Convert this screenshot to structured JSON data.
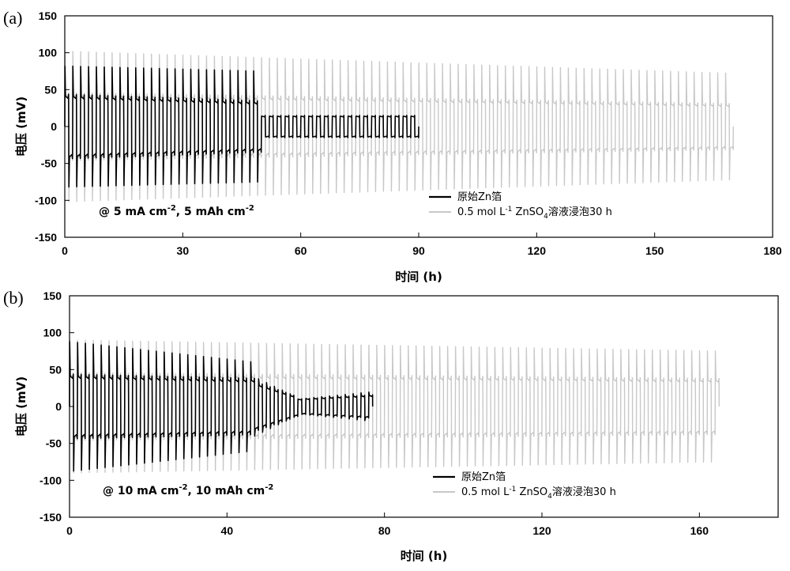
{
  "chart_data": [
    {
      "type": "line",
      "panel_label": "(a)",
      "xlabel": "时间 (h)",
      "ylabel": "电压 (mV)",
      "xlim": [
        0,
        180
      ],
      "ylim": [
        -150,
        150
      ],
      "x_ticks": [
        0,
        30,
        60,
        90,
        120,
        150,
        180
      ],
      "y_ticks": [
        150,
        100,
        50,
        0,
        -50,
        -100,
        -150
      ],
      "annotation": {
        "prefix": "@ 5 mA cm",
        "sup1": "-2",
        "mid": ", 5 mAh cm",
        "sup2": "-2"
      },
      "legend_position": "bottom-right",
      "series": [
        {
          "name": "原始Zn箔",
          "color": "#000000",
          "x_end": 90,
          "half_cycle_h": 1,
          "stages": [
            {
              "to": 50,
              "plateau": [
                38,
                30
              ],
              "peak_start": [
                82,
                75
              ],
              "peak_end": [
                50,
                50
              ]
            },
            {
              "to": 90,
              "plateau": [
                13,
                13
              ],
              "peak_start": [
                14,
                14
              ],
              "peak_end": [
                14,
                14
              ]
            }
          ]
        },
        {
          "name_parts": {
            "a": "0.5 mol L",
            "sup": "-1",
            "b": " ZnSO",
            "sub": "4",
            "c": "溶液浸泡30 h"
          },
          "color": "#c8c8c8",
          "x_end": 170,
          "half_cycle_h": 1,
          "stages": [
            {
              "to": 170,
              "plateau": [
                40,
                27
              ],
              "peak_start": [
                102,
                72
              ],
              "peak_end": [
                70,
                62
              ]
            }
          ]
        }
      ]
    },
    {
      "type": "line",
      "panel_label": "(b)",
      "xlabel": "时间 (h)",
      "ylabel": "电压 (mV)",
      "xlim": [
        0,
        180
      ],
      "ylim": [
        -150,
        150
      ],
      "x_ticks": [
        0,
        40,
        80,
        120,
        160
      ],
      "y_ticks": [
        150,
        100,
        50,
        0,
        -50,
        -100,
        -150
      ],
      "annotation": {
        "prefix": "@ 10 mA cm",
        "sup1": "-2",
        "mid": ", 10 mAh cm",
        "sup2": "-2"
      },
      "legend_position": "bottom-right",
      "series": [
        {
          "name": "原始Zn箔",
          "color": "#000000",
          "x_end": 77,
          "half_cycle_h": 1,
          "stages": [
            {
              "to": 47,
              "plateau": [
                38,
                33
              ],
              "peak_start": [
                88,
                60
              ],
              "peak_end": [
                58,
                55
              ]
            },
            {
              "to": 58,
              "plateau": [
                28,
                10
              ],
              "peak_start": [
                40,
                12
              ],
              "peak_end": [
                40,
                12
              ]
            },
            {
              "to": 77,
              "plateau": [
                9,
                14
              ],
              "peak_start": [
                10,
                20
              ],
              "peak_end": [
                10,
                20
              ]
            }
          ]
        },
        {
          "name_parts": {
            "a": "0.5 mol L",
            "sup": "-1",
            "b": " ZnSO",
            "sub": "4",
            "c": "溶液浸泡30 h"
          },
          "color": "#c8c8c8",
          "x_end": 165,
          "half_cycle_h": 1,
          "stages": [
            {
              "to": 165,
              "plateau": [
                40,
                33
              ],
              "peak_start": [
                90,
                75
              ],
              "peak_end": [
                75,
                70
              ]
            }
          ]
        }
      ]
    }
  ]
}
